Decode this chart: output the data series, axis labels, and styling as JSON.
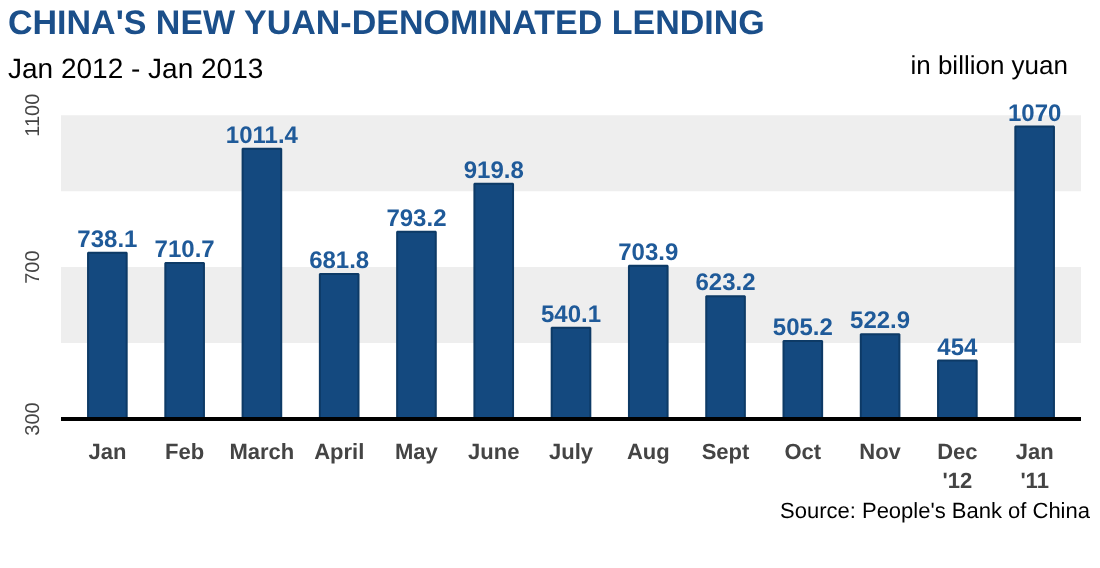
{
  "chart_data": {
    "type": "bar",
    "title": "CHINA'S NEW YUAN-DENOMINATED  LENDING",
    "subtitle": "Jan 2012 - Jan 2013",
    "ylabel": "in billion yuan",
    "categories": [
      "Jan",
      "Feb",
      "March",
      "April",
      "May",
      "June",
      "July",
      "Aug",
      "Sept",
      "Oct",
      "Nov",
      "Dec\n'12",
      "Jan\n'11"
    ],
    "values": [
      738.1,
      710.7,
      1011.4,
      681.8,
      793.2,
      919.8,
      540.1,
      703.9,
      623.2,
      505.2,
      522.9,
      454,
      1070
    ],
    "color": "#14497f",
    "data_labels": true,
    "ylim": [
      300,
      1100
    ],
    "yticks": [
      300,
      700,
      1100
    ],
    "grid": false,
    "bands": [
      {
        "axis": "y",
        "from": 500,
        "to": 700,
        "color": "#eeeeee"
      },
      {
        "axis": "y",
        "from": 900,
        "to": 1100,
        "color": "#eeeeee"
      }
    ],
    "annotations": [
      "Source: People's Bank of China"
    ]
  }
}
